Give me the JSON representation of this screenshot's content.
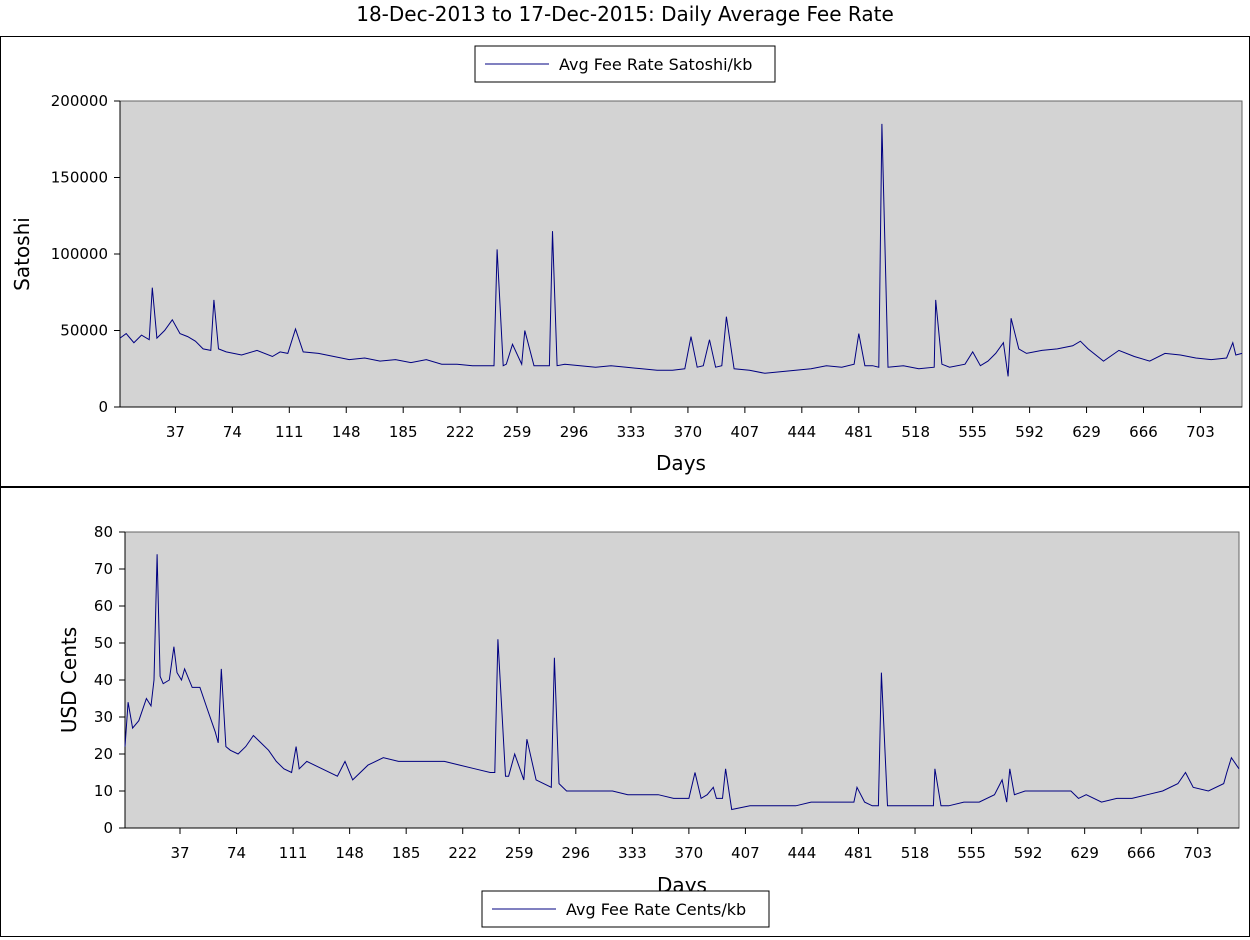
{
  "title": "18-Dec-2013 to 17-Dec-2015: Daily Average Fee Rate",
  "colors": {
    "plot_background": "#d3d3d3",
    "series": "#000080",
    "frame": "#000000"
  },
  "chart_data": [
    {
      "type": "line",
      "title": "",
      "xlabel": "Days",
      "ylabel": "Satoshi",
      "xlim": [
        1,
        730
      ],
      "ylim": [
        0,
        200000
      ],
      "x_ticks": [
        37,
        74,
        111,
        148,
        185,
        222,
        259,
        296,
        333,
        370,
        407,
        444,
        481,
        518,
        555,
        592,
        629,
        666,
        703
      ],
      "y_ticks": [
        0,
        50000,
        100000,
        150000,
        200000
      ],
      "legend": "top-center",
      "series": [
        {
          "name": "Avg Fee Rate Satoshi/kb",
          "color": "#000080",
          "x": [
            1,
            5,
            10,
            15,
            20,
            22,
            25,
            30,
            35,
            40,
            45,
            50,
            55,
            60,
            62,
            65,
            70,
            80,
            90,
            100,
            105,
            110,
            115,
            120,
            130,
            140,
            150,
            160,
            170,
            180,
            190,
            200,
            210,
            220,
            230,
            240,
            244,
            246,
            250,
            252,
            256,
            262,
            264,
            270,
            280,
            282,
            285,
            290,
            300,
            310,
            320,
            330,
            340,
            350,
            360,
            368,
            372,
            376,
            380,
            384,
            388,
            392,
            395,
            400,
            410,
            420,
            430,
            440,
            450,
            460,
            470,
            478,
            481,
            485,
            490,
            494,
            496,
            500,
            510,
            520,
            530,
            531,
            535,
            540,
            550,
            555,
            560,
            565,
            570,
            575,
            578,
            580,
            585,
            590,
            600,
            610,
            620,
            625,
            630,
            640,
            650,
            660,
            670,
            680,
            690,
            700,
            710,
            720,
            724,
            726,
            730
          ],
          "y": [
            45000,
            48000,
            42000,
            47000,
            44000,
            78000,
            45000,
            50000,
            57000,
            48000,
            46000,
            43000,
            38000,
            37000,
            70000,
            38000,
            36000,
            34000,
            37000,
            33000,
            36000,
            35000,
            51000,
            36000,
            35000,
            33000,
            31000,
            32000,
            30000,
            31000,
            29000,
            31000,
            28000,
            28000,
            27000,
            27000,
            27000,
            103000,
            27000,
            28000,
            41000,
            28000,
            50000,
            27000,
            27000,
            115000,
            27000,
            28000,
            27000,
            26000,
            27000,
            26000,
            25000,
            24000,
            24000,
            25000,
            46000,
            26000,
            27000,
            44000,
            26000,
            27000,
            59000,
            25000,
            24000,
            22000,
            23000,
            24000,
            25000,
            27000,
            26000,
            28000,
            48000,
            27000,
            27000,
            26000,
            185000,
            26000,
            27000,
            25000,
            26000,
            70000,
            28000,
            26000,
            28000,
            36000,
            27000,
            30000,
            35000,
            42000,
            20000,
            58000,
            38000,
            35000,
            37000,
            38000,
            40000,
            43000,
            38000,
            30000,
            37000,
            33000,
            30000,
            35000,
            34000,
            32000,
            31000,
            32000,
            42000,
            34000,
            35000
          ]
        }
      ]
    },
    {
      "type": "line",
      "title": "",
      "xlabel": "Days",
      "ylabel": "USD Cents",
      "xlim": [
        1,
        730
      ],
      "ylim": [
        0,
        80
      ],
      "x_ticks": [
        37,
        74,
        111,
        148,
        185,
        222,
        259,
        296,
        333,
        370,
        407,
        444,
        481,
        518,
        555,
        592,
        629,
        666,
        703
      ],
      "y_ticks": [
        0,
        10,
        20,
        30,
        40,
        50,
        60,
        70,
        80
      ],
      "legend": "bottom-center",
      "series": [
        {
          "name": "Avg Fee Rate Cents/kb",
          "color": "#000080",
          "x": [
            1,
            3,
            6,
            10,
            15,
            18,
            20,
            22,
            24,
            26,
            30,
            33,
            35,
            38,
            40,
            45,
            50,
            55,
            60,
            62,
            64,
            67,
            70,
            75,
            80,
            85,
            90,
            95,
            100,
            105,
            110,
            113,
            115,
            120,
            130,
            140,
            145,
            150,
            160,
            170,
            180,
            190,
            200,
            210,
            220,
            230,
            240,
            243,
            245,
            250,
            252,
            256,
            262,
            264,
            270,
            280,
            282,
            285,
            290,
            300,
            310,
            320,
            330,
            340,
            350,
            360,
            368,
            370,
            374,
            378,
            382,
            386,
            388,
            392,
            394,
            398,
            410,
            420,
            430,
            440,
            450,
            460,
            470,
            478,
            480,
            485,
            490,
            494,
            496,
            500,
            510,
            520,
            530,
            531,
            535,
            540,
            550,
            560,
            570,
            575,
            578,
            580,
            583,
            590,
            600,
            610,
            620,
            625,
            630,
            640,
            650,
            660,
            670,
            680,
            690,
            695,
            700,
            710,
            720,
            722,
            725,
            730
          ],
          "y": [
            22,
            34,
            27,
            29,
            35,
            33,
            40,
            74,
            41,
            39,
            40,
            49,
            42,
            40,
            43,
            38,
            38,
            32,
            26,
            23,
            43,
            22,
            21,
            20,
            22,
            25,
            23,
            21,
            18,
            16,
            15,
            22,
            16,
            18,
            16,
            14,
            18,
            13,
            17,
            19,
            18,
            18,
            18,
            18,
            17,
            16,
            15,
            15,
            51,
            14,
            14,
            20,
            13,
            24,
            13,
            11,
            46,
            12,
            10,
            10,
            10,
            10,
            9,
            9,
            9,
            8,
            8,
            8,
            15,
            8,
            9,
            11,
            8,
            8,
            16,
            5,
            6,
            6,
            6,
            6,
            7,
            7,
            7,
            7,
            11,
            7,
            6,
            6,
            42,
            6,
            6,
            6,
            6,
            16,
            6,
            6,
            7,
            7,
            9,
            13,
            7,
            16,
            9,
            10,
            10,
            10,
            10,
            8,
            9,
            7,
            8,
            8,
            9,
            10,
            12,
            15,
            11,
            10,
            12,
            15,
            19,
            16
          ]
        }
      ]
    }
  ]
}
